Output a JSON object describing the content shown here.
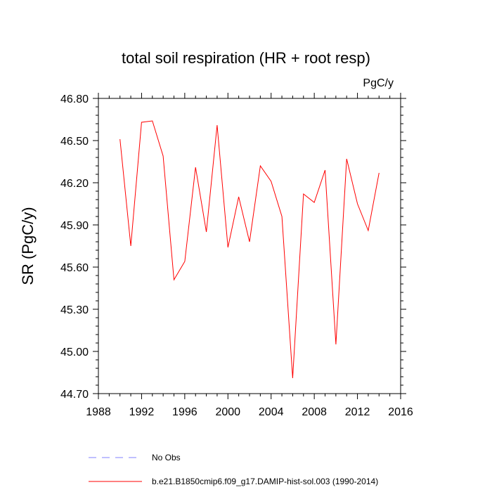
{
  "chart_data": {
    "type": "line",
    "title": "total soil respiration (HR + root resp)",
    "units": "PgC/y",
    "ylabel": "SR  (PgC/y)",
    "xlabel": "",
    "xlim": [
      1988,
      2016
    ],
    "ylim": [
      44.7,
      46.8
    ],
    "xticks": [
      "1988",
      "1992",
      "1996",
      "2000",
      "2004",
      "2008",
      "2012",
      "2016"
    ],
    "yticks": [
      "44.70",
      "45.00",
      "45.30",
      "45.60",
      "45.90",
      "46.20",
      "46.50",
      "46.80"
    ],
    "series": [
      {
        "name": "b.e21.B1850cmip6.f09_g17.DAMIP-hist-sol.003 (1990-2014)",
        "color": "#ff0000",
        "x": [
          1990,
          1991,
          1992,
          1993,
          1994,
          1995,
          1996,
          1997,
          1998,
          1999,
          2000,
          2001,
          2002,
          2003,
          2004,
          2005,
          2006,
          2007,
          2008,
          2009,
          2010,
          2011,
          2012,
          2013,
          2014
        ],
        "y": [
          46.51,
          45.75,
          46.63,
          46.64,
          46.39,
          45.51,
          45.64,
          46.31,
          45.85,
          46.61,
          45.74,
          46.1,
          45.78,
          46.32,
          46.21,
          45.96,
          44.81,
          46.12,
          46.06,
          46.29,
          45.05,
          46.37,
          46.05,
          45.86,
          46.27
        ]
      }
    ],
    "legend": [
      {
        "label": "No Obs",
        "color": "#8080ff",
        "style": "dashed"
      },
      {
        "label": "b.e21.B1850cmip6.f09_g17.DAMIP-hist-sol.003 (1990-2014)",
        "color": "#ff0000",
        "style": "solid"
      }
    ],
    "grid": false,
    "legend_position": "bottom"
  }
}
